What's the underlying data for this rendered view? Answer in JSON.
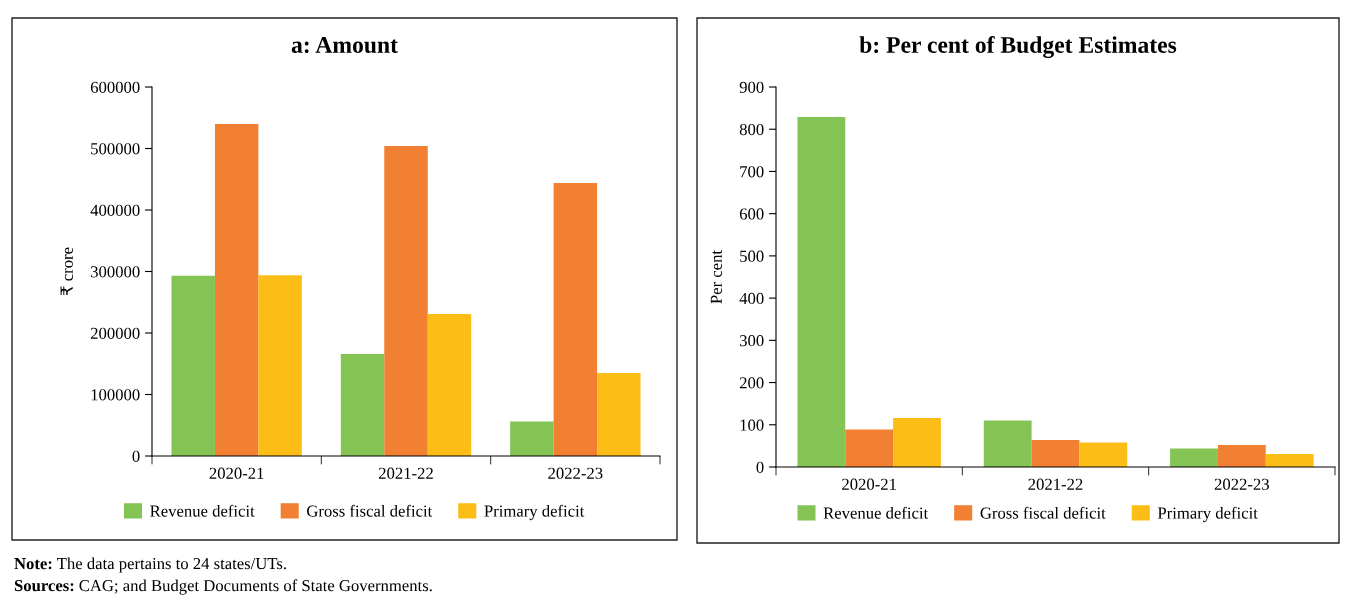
{
  "chart_data": [
    {
      "type": "bar",
      "title": "a: Amount",
      "ylabel": "₹ crore",
      "categories": [
        "2020-21",
        "2021-22",
        "2022-23"
      ],
      "series": [
        {
          "name": "Revenue deficit",
          "color": "#84c455",
          "values": [
            293000,
            166000,
            56000
          ]
        },
        {
          "name": "Gross fiscal deficit",
          "color": "#f28032",
          "values": [
            540000,
            504000,
            444000
          ]
        },
        {
          "name": "Primary deficit",
          "color": "#fdbd17",
          "values": [
            294000,
            231000,
            135000
          ]
        }
      ],
      "ylim": [
        0,
        600000
      ],
      "yticks": [
        0,
        100000,
        200000,
        300000,
        400000,
        500000,
        600000
      ],
      "grid": false,
      "legend": "bottom",
      "annotations": [
        "Note: The data pertains to 24 states/UTs.",
        "Sources: CAG; and Budget Documents of State Governments."
      ]
    },
    {
      "type": "bar",
      "title": "b: Per cent of Budget Estimates",
      "ylabel": "Per cent",
      "categories": [
        "2020-21",
        "2021-22",
        "2022-23"
      ],
      "series": [
        {
          "name": "Revenue deficit",
          "color": "#84c455",
          "values": [
            829,
            110,
            44
          ]
        },
        {
          "name": "Gross fiscal deficit",
          "color": "#f28032",
          "values": [
            89,
            64,
            52
          ]
        },
        {
          "name": "Primary deficit",
          "color": "#fdbd17",
          "values": [
            116,
            58,
            31
          ]
        }
      ],
      "ylim": [
        0,
        900
      ],
      "yticks": [
        0,
        100,
        200,
        300,
        400,
        500,
        600,
        700,
        800,
        900
      ],
      "grid": false,
      "legend": "bottom"
    }
  ]
}
